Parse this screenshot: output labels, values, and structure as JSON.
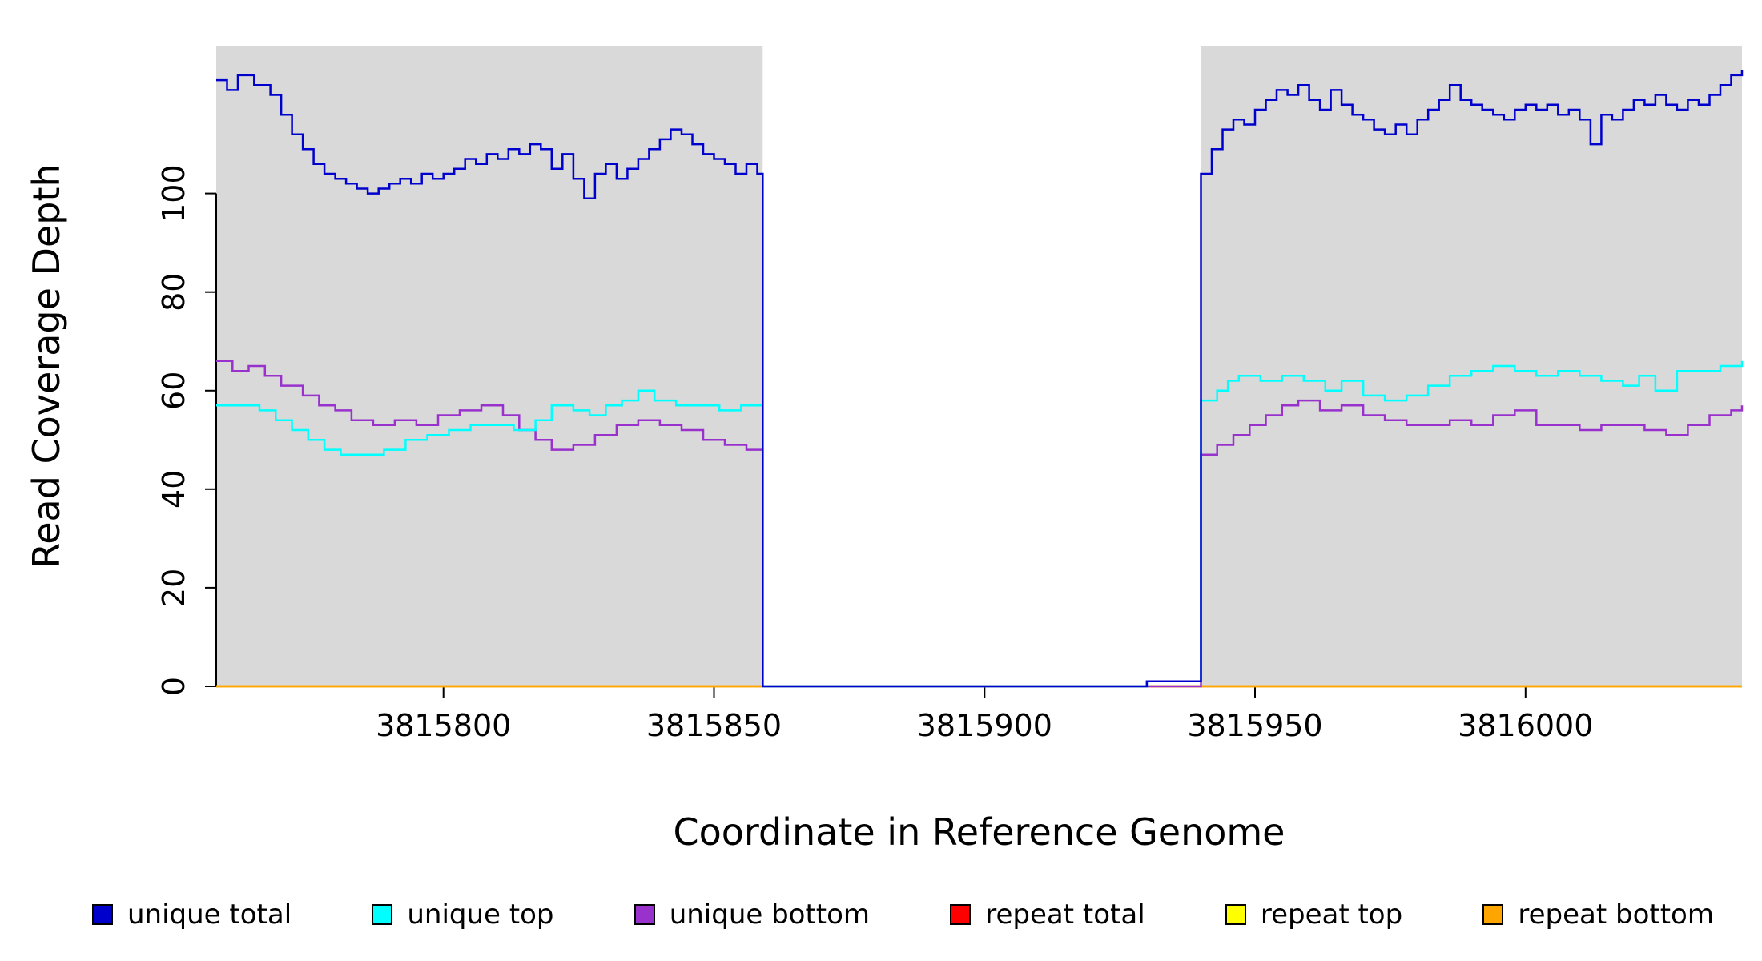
{
  "chart_data": {
    "type": "line",
    "subtype": "step",
    "title": "",
    "xlabel": "Coordinate in Reference Genome",
    "ylabel": "Read Coverage Depth",
    "xlim": [
      3815758,
      3816040
    ],
    "ylim": [
      0,
      130
    ],
    "x_ticks": [
      3815800,
      3815850,
      3815900,
      3815950,
      3816000
    ],
    "y_ticks": [
      0,
      20,
      40,
      60,
      80,
      100
    ],
    "grid": false,
    "legend_position": "bottom",
    "shaded_color": "#d9d9d9",
    "shaded_regions": [
      [
        3815758,
        3815859
      ],
      [
        3815940,
        3816040
      ]
    ],
    "series": [
      {
        "name": "unique total",
        "color": "#0000cd",
        "points": [
          [
            3815758,
            123
          ],
          [
            3815760,
            121
          ],
          [
            3815762,
            124
          ],
          [
            3815765,
            122
          ],
          [
            3815768,
            120
          ],
          [
            3815770,
            116
          ],
          [
            3815772,
            112
          ],
          [
            3815774,
            109
          ],
          [
            3815776,
            106
          ],
          [
            3815778,
            104
          ],
          [
            3815780,
            103
          ],
          [
            3815782,
            102
          ],
          [
            3815784,
            101
          ],
          [
            3815786,
            100
          ],
          [
            3815788,
            101
          ],
          [
            3815790,
            102
          ],
          [
            3815792,
            103
          ],
          [
            3815794,
            102
          ],
          [
            3815796,
            104
          ],
          [
            3815798,
            103
          ],
          [
            3815800,
            104
          ],
          [
            3815802,
            105
          ],
          [
            3815804,
            107
          ],
          [
            3815806,
            106
          ],
          [
            3815808,
            108
          ],
          [
            3815810,
            107
          ],
          [
            3815812,
            109
          ],
          [
            3815814,
            108
          ],
          [
            3815816,
            110
          ],
          [
            3815818,
            109
          ],
          [
            3815820,
            105
          ],
          [
            3815822,
            108
          ],
          [
            3815824,
            103
          ],
          [
            3815826,
            99
          ],
          [
            3815828,
            104
          ],
          [
            3815830,
            106
          ],
          [
            3815832,
            103
          ],
          [
            3815834,
            105
          ],
          [
            3815836,
            107
          ],
          [
            3815838,
            109
          ],
          [
            3815840,
            111
          ],
          [
            3815842,
            113
          ],
          [
            3815844,
            112
          ],
          [
            3815846,
            110
          ],
          [
            3815848,
            108
          ],
          [
            3815850,
            107
          ],
          [
            3815852,
            106
          ],
          [
            3815854,
            104
          ],
          [
            3815856,
            106
          ],
          [
            3815858,
            104
          ],
          [
            3815859,
            0
          ],
          [
            3815930,
            1
          ],
          [
            3815940,
            104
          ],
          [
            3815942,
            109
          ],
          [
            3815944,
            113
          ],
          [
            3815946,
            115
          ],
          [
            3815948,
            114
          ],
          [
            3815950,
            117
          ],
          [
            3815952,
            119
          ],
          [
            3815954,
            121
          ],
          [
            3815956,
            120
          ],
          [
            3815958,
            122
          ],
          [
            3815960,
            119
          ],
          [
            3815962,
            117
          ],
          [
            3815964,
            121
          ],
          [
            3815966,
            118
          ],
          [
            3815968,
            116
          ],
          [
            3815970,
            115
          ],
          [
            3815972,
            113
          ],
          [
            3815974,
            112
          ],
          [
            3815976,
            114
          ],
          [
            3815978,
            112
          ],
          [
            3815980,
            115
          ],
          [
            3815982,
            117
          ],
          [
            3815984,
            119
          ],
          [
            3815986,
            122
          ],
          [
            3815988,
            119
          ],
          [
            3815990,
            118
          ],
          [
            3815992,
            117
          ],
          [
            3815994,
            116
          ],
          [
            3815996,
            115
          ],
          [
            3815998,
            117
          ],
          [
            3816000,
            118
          ],
          [
            3816002,
            117
          ],
          [
            3816004,
            118
          ],
          [
            3816006,
            116
          ],
          [
            3816008,
            117
          ],
          [
            3816010,
            115
          ],
          [
            3816012,
            110
          ],
          [
            3816014,
            116
          ],
          [
            3816016,
            115
          ],
          [
            3816018,
            117
          ],
          [
            3816020,
            119
          ],
          [
            3816022,
            118
          ],
          [
            3816024,
            120
          ],
          [
            3816026,
            118
          ],
          [
            3816028,
            117
          ],
          [
            3816030,
            119
          ],
          [
            3816032,
            118
          ],
          [
            3816034,
            120
          ],
          [
            3816036,
            122
          ],
          [
            3816038,
            124
          ],
          [
            3816040,
            125
          ]
        ]
      },
      {
        "name": "unique top",
        "color": "#00ffff",
        "points": [
          [
            3815758,
            57
          ],
          [
            3815763,
            57
          ],
          [
            3815766,
            56
          ],
          [
            3815769,
            54
          ],
          [
            3815772,
            52
          ],
          [
            3815775,
            50
          ],
          [
            3815778,
            48
          ],
          [
            3815781,
            47
          ],
          [
            3815785,
            47
          ],
          [
            3815789,
            48
          ],
          [
            3815793,
            50
          ],
          [
            3815797,
            51
          ],
          [
            3815801,
            52
          ],
          [
            3815805,
            53
          ],
          [
            3815809,
            53
          ],
          [
            3815813,
            52
          ],
          [
            3815817,
            54
          ],
          [
            3815820,
            57
          ],
          [
            3815824,
            56
          ],
          [
            3815827,
            55
          ],
          [
            3815830,
            57
          ],
          [
            3815833,
            58
          ],
          [
            3815836,
            60
          ],
          [
            3815839,
            58
          ],
          [
            3815843,
            57
          ],
          [
            3815847,
            57
          ],
          [
            3815851,
            56
          ],
          [
            3815855,
            57
          ],
          [
            3815859,
            0
          ],
          [
            3815930,
            1
          ],
          [
            3815940,
            58
          ],
          [
            3815943,
            60
          ],
          [
            3815945,
            62
          ],
          [
            3815947,
            63
          ],
          [
            3815951,
            62
          ],
          [
            3815955,
            63
          ],
          [
            3815959,
            62
          ],
          [
            3815963,
            60
          ],
          [
            3815966,
            62
          ],
          [
            3815970,
            59
          ],
          [
            3815974,
            58
          ],
          [
            3815978,
            59
          ],
          [
            3815982,
            61
          ],
          [
            3815986,
            63
          ],
          [
            3815990,
            64
          ],
          [
            3815994,
            65
          ],
          [
            3815998,
            64
          ],
          [
            3816002,
            63
          ],
          [
            3816006,
            64
          ],
          [
            3816010,
            63
          ],
          [
            3816014,
            62
          ],
          [
            3816018,
            61
          ],
          [
            3816021,
            63
          ],
          [
            3816024,
            60
          ],
          [
            3816028,
            64
          ],
          [
            3816032,
            64
          ],
          [
            3816036,
            65
          ],
          [
            3816040,
            66
          ]
        ]
      },
      {
        "name": "unique bottom",
        "color": "#9932cc",
        "points": [
          [
            3815758,
            66
          ],
          [
            3815761,
            64
          ],
          [
            3815764,
            65
          ],
          [
            3815767,
            63
          ],
          [
            3815770,
            61
          ],
          [
            3815774,
            59
          ],
          [
            3815777,
            57
          ],
          [
            3815780,
            56
          ],
          [
            3815783,
            54
          ],
          [
            3815787,
            53
          ],
          [
            3815791,
            54
          ],
          [
            3815795,
            53
          ],
          [
            3815799,
            55
          ],
          [
            3815803,
            56
          ],
          [
            3815807,
            57
          ],
          [
            3815811,
            55
          ],
          [
            3815814,
            52
          ],
          [
            3815817,
            50
          ],
          [
            3815820,
            48
          ],
          [
            3815824,
            49
          ],
          [
            3815828,
            51
          ],
          [
            3815832,
            53
          ],
          [
            3815836,
            54
          ],
          [
            3815840,
            53
          ],
          [
            3815844,
            52
          ],
          [
            3815848,
            50
          ],
          [
            3815852,
            49
          ],
          [
            3815856,
            48
          ],
          [
            3815859,
            0
          ],
          [
            3815940,
            47
          ],
          [
            3815943,
            49
          ],
          [
            3815946,
            51
          ],
          [
            3815949,
            53
          ],
          [
            3815952,
            55
          ],
          [
            3815955,
            57
          ],
          [
            3815958,
            58
          ],
          [
            3815962,
            56
          ],
          [
            3815966,
            57
          ],
          [
            3815970,
            55
          ],
          [
            3815974,
            54
          ],
          [
            3815978,
            53
          ],
          [
            3815982,
            53
          ],
          [
            3815986,
            54
          ],
          [
            3815990,
            53
          ],
          [
            3815994,
            55
          ],
          [
            3815998,
            56
          ],
          [
            3816002,
            53
          ],
          [
            3816006,
            53
          ],
          [
            3816010,
            52
          ],
          [
            3816014,
            53
          ],
          [
            3816018,
            53
          ],
          [
            3816022,
            52
          ],
          [
            3816026,
            51
          ],
          [
            3816030,
            53
          ],
          [
            3816034,
            55
          ],
          [
            3816038,
            56
          ],
          [
            3816040,
            57
          ]
        ]
      },
      {
        "name": "repeat total",
        "color": "#ff0000",
        "points": [
          [
            3815758,
            0
          ],
          [
            3816040,
            0
          ]
        ]
      },
      {
        "name": "repeat top",
        "color": "#ffff00",
        "points": [
          [
            3815758,
            0
          ],
          [
            3816040,
            0
          ]
        ]
      },
      {
        "name": "repeat bottom",
        "color": "#ffa500",
        "points": [
          [
            3815758,
            0
          ],
          [
            3816040,
            0
          ]
        ]
      }
    ]
  }
}
